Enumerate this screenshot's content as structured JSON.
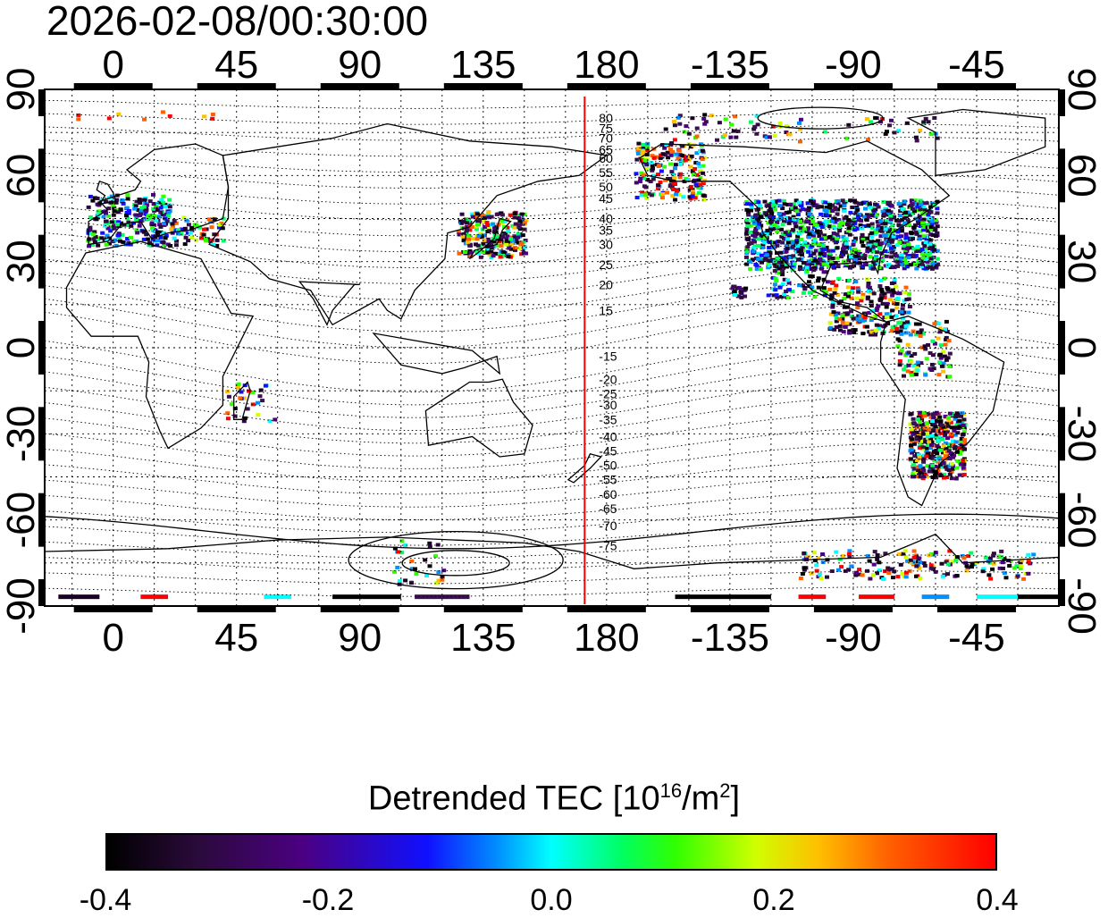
{
  "timestamp": "2026-02-08/00:30:00",
  "colorbar": {
    "title_main": "Detrended TEC  [10",
    "title_exp": "16",
    "title_unit": "/m",
    "title_unit_exp": "2",
    "title_close": "]",
    "labels": [
      "-0.4",
      "-0.2",
      "0.0",
      "0.2",
      "0.4"
    ]
  },
  "chart_data": {
    "type": "map",
    "title": "2026-02-08/00:30:00",
    "x_ticks_top": [
      "0",
      "45",
      "90",
      "135",
      "180",
      "-135",
      "-90",
      "-45"
    ],
    "x_ticks_bottom": [
      "0",
      "45",
      "90",
      "135",
      "180",
      "-135",
      "-90",
      "-45"
    ],
    "y_ticks_left": [
      "90",
      "60",
      "30",
      "0",
      "-30",
      "-60",
      "-90"
    ],
    "y_ticks_right": [
      "90",
      "60",
      "30",
      "0",
      "-30",
      "-60",
      "-90"
    ],
    "x_tick_lons": [
      0,
      45,
      90,
      135,
      180,
      225,
      270,
      315
    ],
    "y_tick_lats": [
      90,
      60,
      30,
      0,
      -30,
      -60,
      -90
    ],
    "lon_range": [
      -25,
      345
    ],
    "lat_range": [
      -90,
      90
    ],
    "marker_meridian_lon": 172,
    "contour_labels_north": [
      "80",
      "75",
      "70",
      "65",
      "60",
      "55",
      "50",
      "45",
      "40",
      "35",
      "30",
      "25",
      "20",
      "15"
    ],
    "contour_labels_south": [
      "-15",
      "-20",
      "-25",
      "-30",
      "-35",
      "-40",
      "-45",
      "-50",
      "-55",
      "-60",
      "-65",
      "-70",
      "-75"
    ],
    "north_label_lats": [
      80,
      76.5,
      73,
      69,
      66,
      61,
      56,
      52,
      45,
      41,
      36,
      29,
      22,
      13
    ],
    "south_label_lats": [
      -3,
      -11,
      -16,
      -20,
      -25,
      -31,
      -36,
      -41,
      -46,
      -51,
      -56,
      -62,
      -69
    ],
    "colorbar_range": [
      -0.4,
      0.4
    ],
    "colorbar_label": "Detrended TEC [10^16/m^2]",
    "grid": true
  }
}
